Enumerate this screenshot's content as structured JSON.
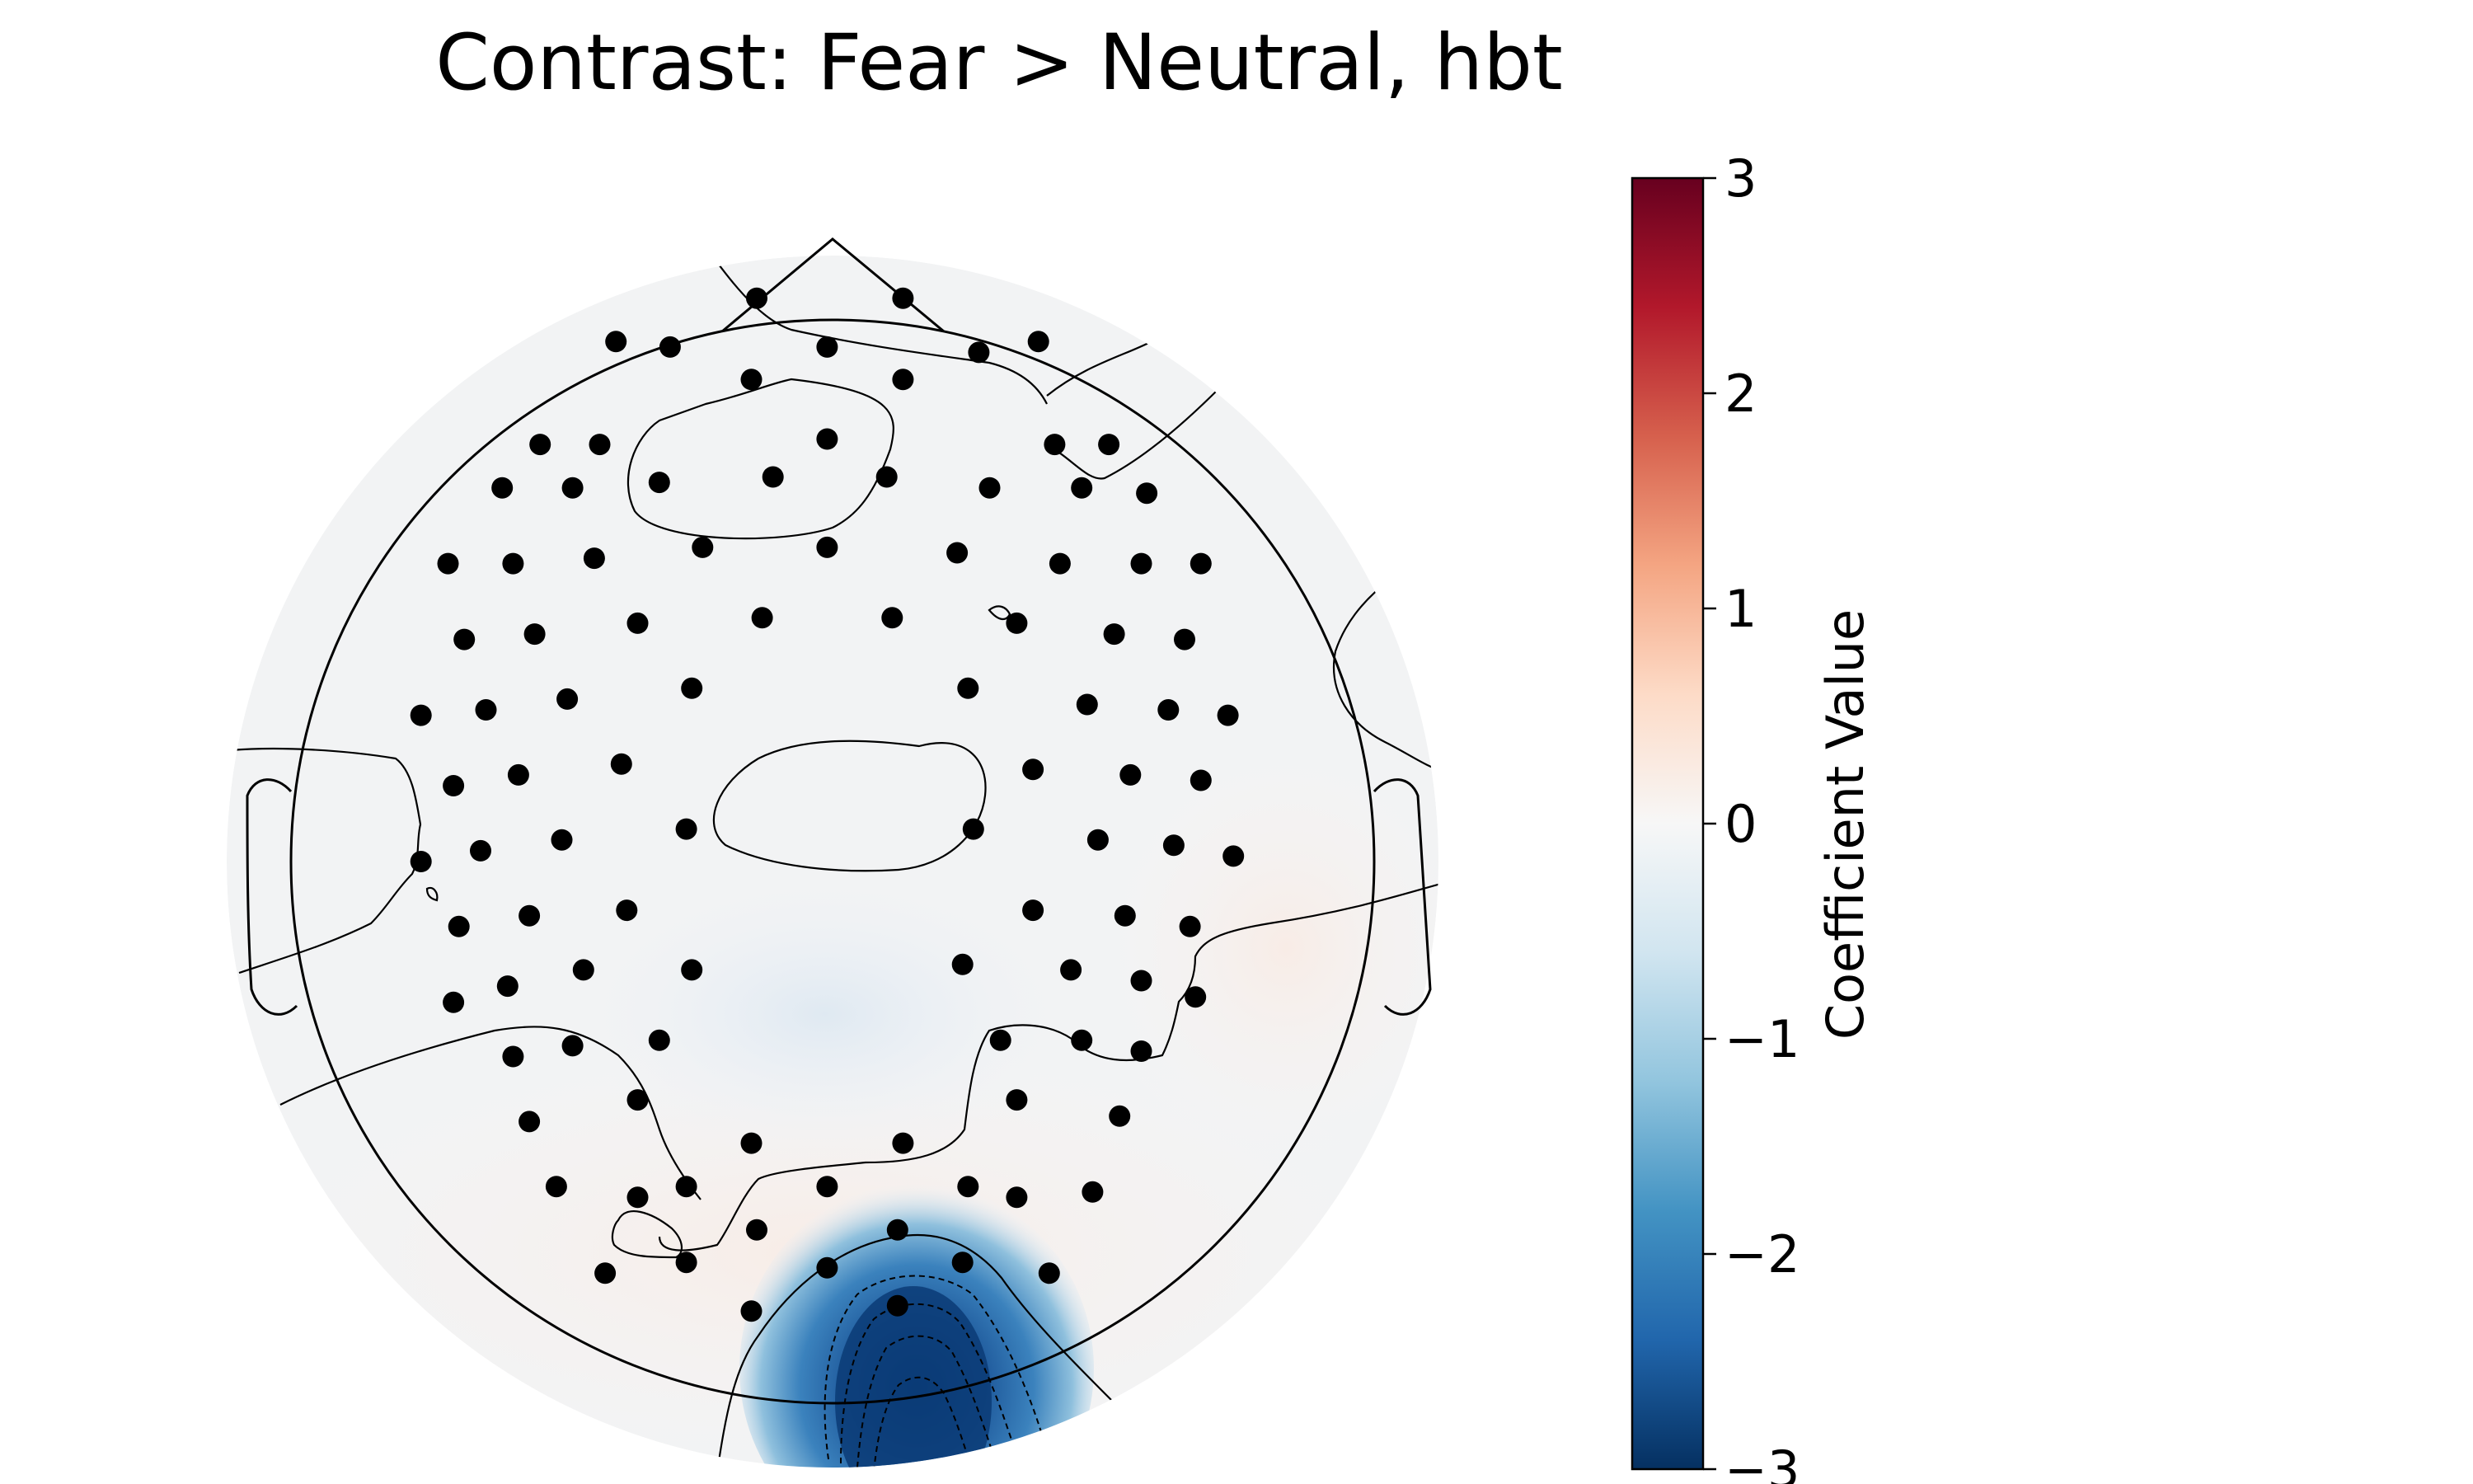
{
  "chart_data": {
    "type": "heatmap",
    "subtype": "eeg-topomap",
    "title": "Contrast: Fear > Neutral, hbt",
    "colorbar": {
      "label": "Coefficient Value",
      "range": [
        -3,
        3
      ],
      "ticks": [
        3,
        2,
        1,
        0,
        -1,
        -2,
        -3
      ],
      "tick_labels": [
        "3",
        "2",
        "1",
        "0",
        "−1",
        "−2",
        "−3"
      ],
      "colormap": "RdBu_r",
      "colors": [
        "#053061",
        "#2166ac",
        "#4393c3",
        "#92c5de",
        "#d1e5f0",
        "#f7f7f7",
        "#fddbc7",
        "#f4a582",
        "#d6604d",
        "#b2182b",
        "#67001f"
      ]
    },
    "field_description_value": {
      "peak_location": "occipital midline",
      "peak_value": -3,
      "background_value_range": [
        -0.1,
        0.1
      ]
    },
    "sensor_marker_color": "#000000",
    "sensor_positions": [
      [
        -0.14,
        1.04
      ],
      [
        0.13,
        1.04
      ],
      [
        -0.4,
        0.96
      ],
      [
        -0.3,
        0.95
      ],
      [
        -0.01,
        0.95
      ],
      [
        0.27,
        0.94
      ],
      [
        0.38,
        0.96
      ],
      [
        -0.15,
        0.89
      ],
      [
        0.13,
        0.89
      ],
      [
        -0.54,
        0.77
      ],
      [
        -0.43,
        0.77
      ],
      [
        -0.01,
        0.78
      ],
      [
        0.41,
        0.77
      ],
      [
        0.51,
        0.77
      ],
      [
        -0.61,
        0.69
      ],
      [
        -0.48,
        0.69
      ],
      [
        -0.32,
        0.7
      ],
      [
        -0.11,
        0.71
      ],
      [
        0.1,
        0.71
      ],
      [
        0.29,
        0.69
      ],
      [
        0.46,
        0.69
      ],
      [
        0.58,
        0.68
      ],
      [
        -0.71,
        0.55
      ],
      [
        -0.59,
        0.55
      ],
      [
        -0.44,
        0.56
      ],
      [
        -0.24,
        0.58
      ],
      [
        -0.01,
        0.58
      ],
      [
        0.23,
        0.57
      ],
      [
        0.42,
        0.55
      ],
      [
        0.57,
        0.55
      ],
      [
        0.68,
        0.55
      ],
      [
        -0.68,
        0.41
      ],
      [
        -0.55,
        0.42
      ],
      [
        -0.36,
        0.44
      ],
      [
        -0.13,
        0.45
      ],
      [
        0.11,
        0.45
      ],
      [
        0.34,
        0.44
      ],
      [
        0.52,
        0.42
      ],
      [
        0.65,
        0.41
      ],
      [
        -0.76,
        0.27
      ],
      [
        -0.64,
        0.28
      ],
      [
        -0.49,
        0.3
      ],
      [
        -0.26,
        0.32
      ],
      [
        0.25,
        0.32
      ],
      [
        0.47,
        0.29
      ],
      [
        0.62,
        0.28
      ],
      [
        0.73,
        0.27
      ],
      [
        -0.7,
        0.14
      ],
      [
        -0.58,
        0.16
      ],
      [
        -0.39,
        0.18
      ],
      [
        0.37,
        0.17
      ],
      [
        0.55,
        0.16
      ],
      [
        0.68,
        0.15
      ],
      [
        -0.76,
        0
      ],
      [
        -0.65,
        0.02
      ],
      [
        -0.5,
        0.04
      ],
      [
        -0.27,
        0.06
      ],
      [
        0.26,
        0.06
      ],
      [
        0.49,
        0.04
      ],
      [
        0.63,
        0.03
      ],
      [
        0.74,
        0.01
      ],
      [
        -0.69,
        -0.12
      ],
      [
        -0.56,
        -0.1
      ],
      [
        -0.38,
        -0.09
      ],
      [
        0.37,
        -0.09
      ],
      [
        0.54,
        -0.1
      ],
      [
        0.66,
        -0.12
      ],
      [
        -0.7,
        -0.26
      ],
      [
        -0.6,
        -0.23
      ],
      [
        -0.46,
        -0.2
      ],
      [
        -0.26,
        -0.2
      ],
      [
        0.24,
        -0.19
      ],
      [
        0.44,
        -0.2
      ],
      [
        0.57,
        -0.22
      ],
      [
        0.67,
        -0.25
      ],
      [
        -0.59,
        -0.36
      ],
      [
        -0.48,
        -0.34
      ],
      [
        -0.32,
        -0.33
      ],
      [
        0.31,
        -0.33
      ],
      [
        0.46,
        -0.33
      ],
      [
        0.57,
        -0.35
      ],
      [
        -0.56,
        -0.48
      ],
      [
        -0.36,
        -0.44
      ],
      [
        0.34,
        -0.44
      ],
      [
        0.53,
        -0.47
      ],
      [
        -0.15,
        -0.52
      ],
      [
        0.13,
        -0.52
      ],
      [
        -0.51,
        -0.6
      ],
      [
        -0.36,
        -0.62
      ],
      [
        -0.27,
        -0.6
      ],
      [
        -0.14,
        -0.68
      ],
      [
        -0.01,
        -0.6
      ],
      [
        0.25,
        -0.6
      ],
      [
        0.34,
        -0.62
      ],
      [
        0.48,
        -0.61
      ],
      [
        -0.42,
        -0.76
      ],
      [
        -0.27,
        -0.74
      ],
      [
        -0.01,
        -0.75
      ],
      [
        0.12,
        -0.68
      ],
      [
        0.24,
        -0.74
      ],
      [
        0.4,
        -0.76
      ],
      [
        -0.15,
        -0.83
      ],
      [
        0.12,
        -0.82
      ]
    ]
  }
}
